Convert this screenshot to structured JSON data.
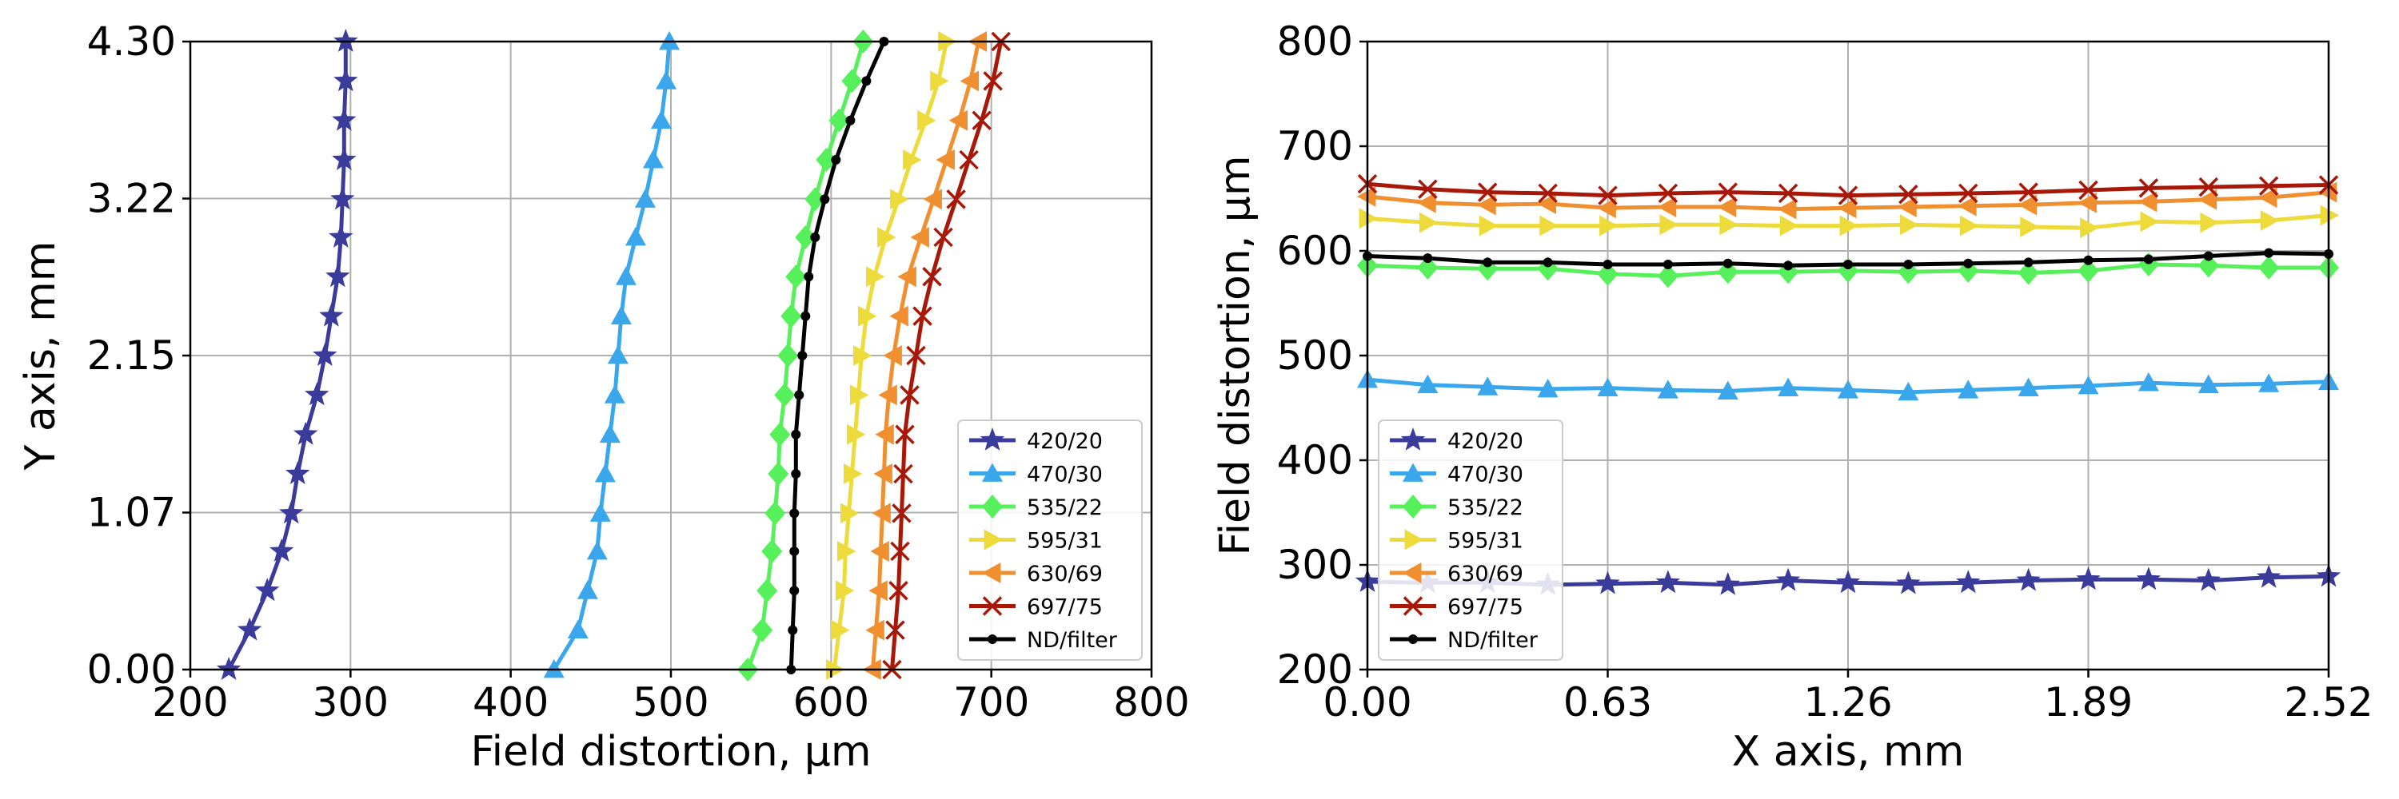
{
  "chart_data": [
    {
      "type": "line",
      "orientation": "vertical-profile",
      "xlabel": "Field distortion, µm",
      "ylabel": "Y axis, mm",
      "xlim": [
        200,
        800
      ],
      "ylim": [
        0.0,
        4.3
      ],
      "xticks": [
        "200",
        "300",
        "400",
        "500",
        "600",
        "700",
        "800"
      ],
      "yticks": [
        "0.00",
        "1.07",
        "2.15",
        "3.22",
        "4.30"
      ],
      "grid": true,
      "legend_position": "lower-right",
      "y": [
        0.0,
        0.27,
        0.54,
        0.81,
        1.07,
        1.34,
        1.61,
        1.88,
        2.15,
        2.42,
        2.69,
        2.96,
        3.22,
        3.49,
        3.76,
        4.03,
        4.3
      ],
      "series": [
        {
          "name": "420/20",
          "color": "#3b3b9b",
          "marker": "star",
          "values": [
            224,
            237,
            248,
            257,
            263,
            267,
            272,
            279,
            284,
            288,
            292,
            294,
            295,
            296,
            296,
            297,
            297
          ]
        },
        {
          "name": "470/30",
          "color": "#3aa7ec",
          "marker": "triangle-up",
          "values": [
            427,
            442,
            448,
            454,
            456,
            459,
            462,
            465,
            467,
            469,
            472,
            478,
            484,
            489,
            494,
            497,
            499
          ]
        },
        {
          "name": "535/22",
          "color": "#55f05a",
          "marker": "diamond",
          "values": [
            548,
            557,
            560,
            563,
            565,
            567,
            568,
            571,
            573,
            575,
            578,
            584,
            590,
            597,
            605,
            613,
            620
          ]
        },
        {
          "name": "595/31",
          "color": "#eddb3c",
          "marker": "triangle-right",
          "values": [
            602,
            605,
            608,
            609,
            611,
            613,
            615,
            617,
            619,
            622,
            627,
            634,
            642,
            650,
            659,
            667,
            672
          ]
        },
        {
          "name": "630/69",
          "color": "#f08f30",
          "marker": "triangle-left",
          "values": [
            626,
            628,
            630,
            631,
            632,
            633,
            634,
            636,
            639,
            643,
            648,
            656,
            664,
            672,
            680,
            687,
            692
          ]
        },
        {
          "name": "697/75",
          "color": "#a81808",
          "marker": "x",
          "values": [
            638,
            640,
            642,
            643,
            644,
            645,
            646,
            649,
            653,
            657,
            663,
            670,
            678,
            686,
            694,
            701,
            706
          ]
        },
        {
          "name": "ND/filter",
          "color": "#000000",
          "marker": "dot",
          "values": [
            575,
            576,
            577,
            577,
            577,
            578,
            578,
            580,
            582,
            584,
            586,
            590,
            596,
            603,
            612,
            622,
            633
          ]
        }
      ]
    },
    {
      "type": "line",
      "xlabel": "X axis, mm",
      "ylabel": "Field distortion, µm",
      "xlim": [
        0.0,
        2.52
      ],
      "ylim": [
        200,
        800
      ],
      "xticks": [
        "0.00",
        "0.63",
        "1.26",
        "1.89",
        "2.52"
      ],
      "yticks": [
        "200",
        "300",
        "400",
        "500",
        "600",
        "700",
        "800"
      ],
      "grid": true,
      "legend_position": "lower-left",
      "x": [
        0.0,
        0.158,
        0.315,
        0.473,
        0.63,
        0.788,
        0.945,
        1.103,
        1.26,
        1.418,
        1.575,
        1.733,
        1.89,
        2.048,
        2.205,
        2.363,
        2.52
      ],
      "series": [
        {
          "name": "420/20",
          "color": "#3b3b9b",
          "marker": "star",
          "values": [
            284,
            283,
            283,
            281,
            282,
            283,
            281,
            285,
            283,
            282,
            283,
            285,
            286,
            286,
            285,
            288,
            289
          ]
        },
        {
          "name": "470/30",
          "color": "#3aa7ec",
          "marker": "triangle-up",
          "values": [
            477,
            472,
            470,
            468,
            469,
            467,
            466,
            469,
            467,
            465,
            467,
            469,
            471,
            474,
            472,
            473,
            475
          ]
        },
        {
          "name": "535/22",
          "color": "#55f05a",
          "marker": "diamond",
          "values": [
            586,
            584,
            583,
            583,
            578,
            576,
            580,
            580,
            581,
            580,
            581,
            579,
            581,
            587,
            586,
            584,
            584
          ]
        },
        {
          "name": "595/31",
          "color": "#eddb3c",
          "marker": "triangle-right",
          "values": [
            631,
            627,
            624,
            624,
            624,
            625,
            625,
            624,
            624,
            625,
            624,
            623,
            622,
            628,
            627,
            629,
            634
          ]
        },
        {
          "name": "630/69",
          "color": "#f08f30",
          "marker": "triangle-left",
          "values": [
            652,
            646,
            644,
            645,
            641,
            642,
            642,
            640,
            641,
            642,
            643,
            644,
            646,
            647,
            649,
            651,
            656
          ]
        },
        {
          "name": "697/75",
          "color": "#a81808",
          "marker": "x",
          "values": [
            664,
            659,
            656,
            655,
            653,
            655,
            656,
            655,
            653,
            654,
            655,
            656,
            658,
            660,
            661,
            662,
            663
          ]
        },
        {
          "name": "ND/filter",
          "color": "#000000",
          "marker": "dot",
          "values": [
            595,
            593,
            589,
            589,
            587,
            587,
            588,
            586,
            587,
            587,
            588,
            589,
            591,
            592,
            595,
            598,
            597
          ]
        }
      ]
    }
  ]
}
